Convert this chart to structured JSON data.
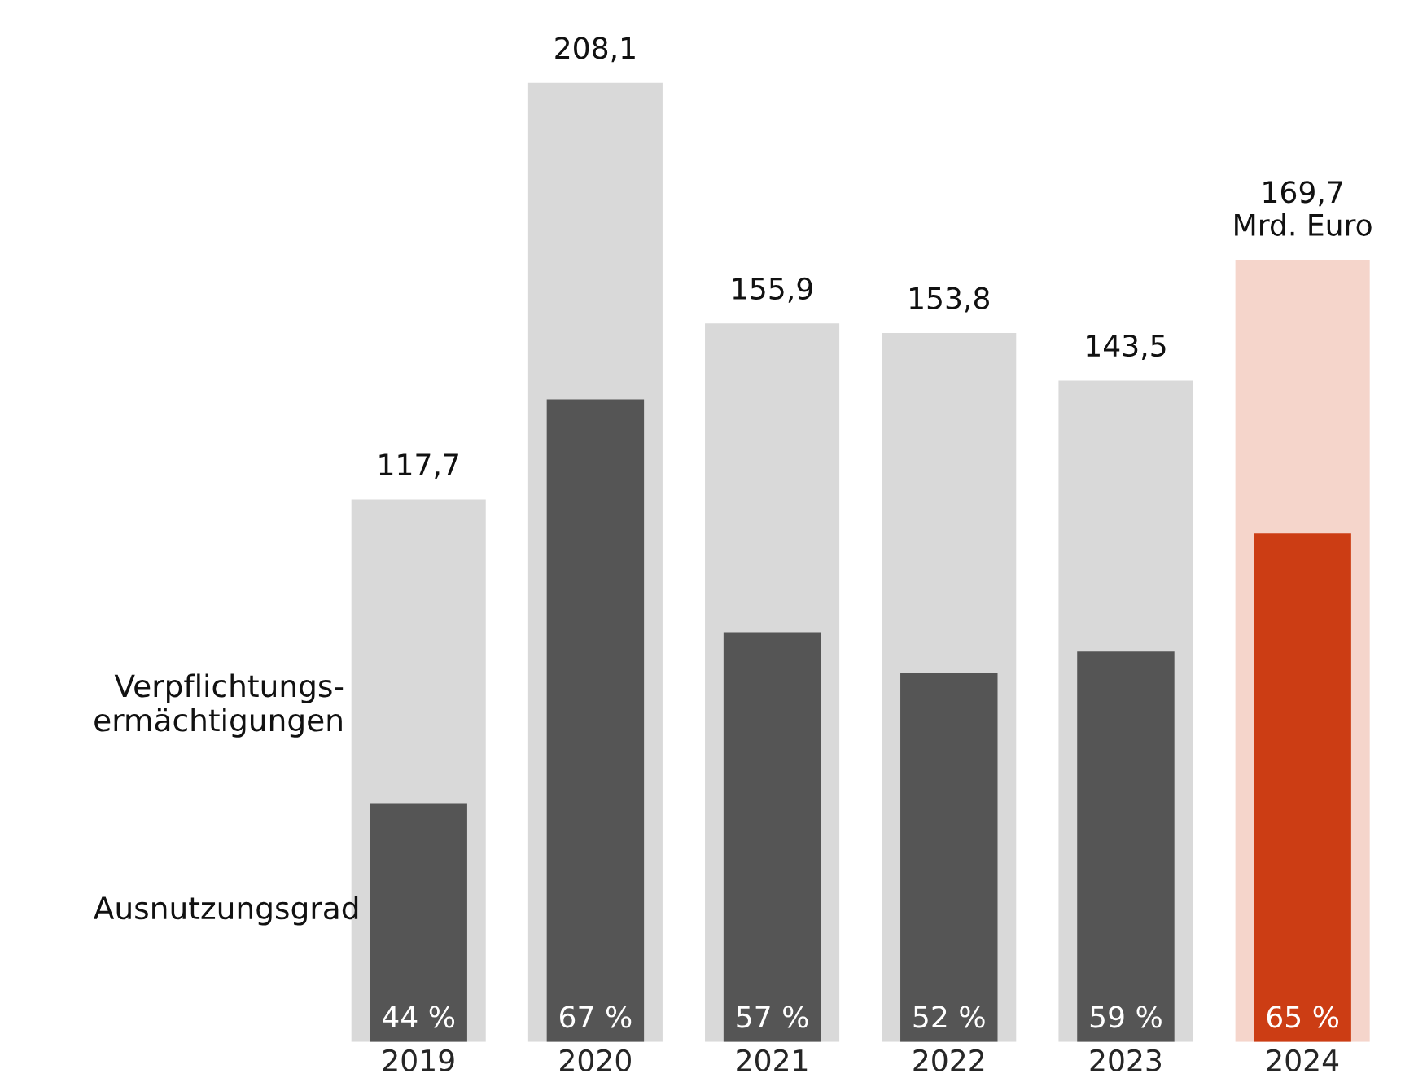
{
  "chart_data": {
    "type": "bar",
    "categories": [
      "2019",
      "2020",
      "2021",
      "2022",
      "2023",
      "2024"
    ],
    "series": [
      {
        "name": "Verpflichtungs-\nermächtigungen",
        "colors": [
          "#d9d9d9",
          "#d9d9d9",
          "#d9d9d9",
          "#d9d9d9",
          "#d9d9d9",
          "#f5d5cb"
        ],
        "values": [
          117.7,
          208.1,
          155.9,
          153.8,
          143.5,
          169.7
        ],
        "value_labels": [
          "117,7",
          "208,1",
          "155,9",
          "153,8",
          "143,5",
          "169,7\nMrd. Euro"
        ]
      },
      {
        "name": "Ausnutzungsgrad",
        "colors": [
          "#555555",
          "#555555",
          "#555555",
          "#555555",
          "#555555",
          "#cc3d14"
        ],
        "values": [
          51.8,
          139.4,
          88.9,
          80.0,
          84.7,
          110.3
        ]
      }
    ],
    "annotations": [
      {
        "text": "44 %",
        "x": "2019",
        "y": 0
      },
      {
        "text": "67 %",
        "x": "2020",
        "y": 0
      },
      {
        "text": "57 %",
        "x": "2021",
        "y": 0
      },
      {
        "text": "52 %",
        "x": "2022",
        "y": 0
      },
      {
        "text": "59 %",
        "x": "2023",
        "y": 0
      },
      {
        "text": "65 %",
        "x": "2024",
        "y": 0
      }
    ],
    "legend": "left",
    "grid": false,
    "tick_labels": "x"
  }
}
